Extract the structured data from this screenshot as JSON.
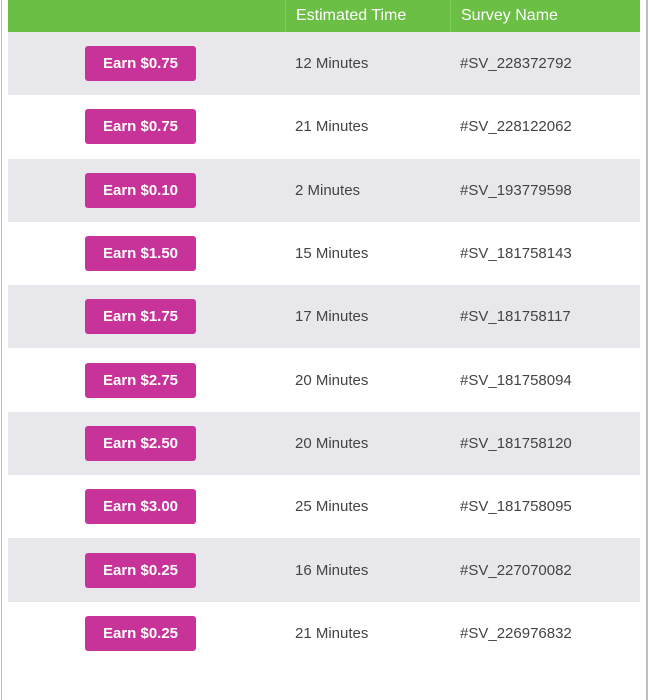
{
  "header": {
    "col1": "",
    "col2": "Estimated Time",
    "col3": "Survey Name"
  },
  "colors": {
    "header": "#6cbf45",
    "button": "#c83399",
    "stripe": "#e8e7ec"
  },
  "rows": [
    {
      "button": "Earn $0.75",
      "time": "12 Minutes",
      "name": "#SV_228372792"
    },
    {
      "button": "Earn $0.75",
      "time": "21 Minutes",
      "name": "#SV_228122062"
    },
    {
      "button": "Earn $0.10",
      "time": "2 Minutes",
      "name": "#SV_193779598"
    },
    {
      "button": "Earn $1.50",
      "time": "15 Minutes",
      "name": "#SV_181758143"
    },
    {
      "button": "Earn $1.75",
      "time": "17 Minutes",
      "name": "#SV_181758117"
    },
    {
      "button": "Earn $2.75",
      "time": "20 Minutes",
      "name": "#SV_181758094"
    },
    {
      "button": "Earn $2.50",
      "time": "20 Minutes",
      "name": "#SV_181758120"
    },
    {
      "button": "Earn $3.00",
      "time": "25 Minutes",
      "name": "#SV_181758095"
    },
    {
      "button": "Earn $0.25",
      "time": "16 Minutes",
      "name": "#SV_227070082"
    },
    {
      "button": "Earn $0.25",
      "time": "21 Minutes",
      "name": "#SV_226976832"
    }
  ]
}
